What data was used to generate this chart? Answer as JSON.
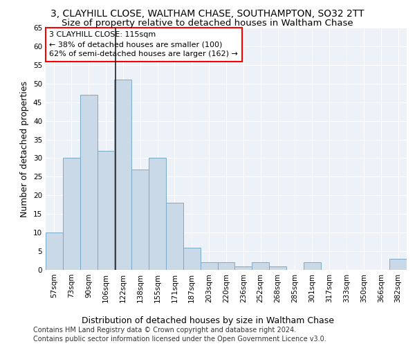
{
  "title_line1": "3, CLAYHILL CLOSE, WALTHAM CHASE, SOUTHAMPTON, SO32 2TT",
  "title_line2": "Size of property relative to detached houses in Waltham Chase",
  "xlabel": "Distribution of detached houses by size in Waltham Chase",
  "ylabel": "Number of detached properties",
  "footer_line1": "Contains HM Land Registry data © Crown copyright and database right 2024.",
  "footer_line2": "Contains public sector information licensed under the Open Government Licence v3.0.",
  "categories": [
    "57sqm",
    "73sqm",
    "90sqm",
    "106sqm",
    "122sqm",
    "138sqm",
    "155sqm",
    "171sqm",
    "187sqm",
    "203sqm",
    "220sqm",
    "236sqm",
    "252sqm",
    "268sqm",
    "285sqm",
    "301sqm",
    "317sqm",
    "333sqm",
    "350sqm",
    "366sqm",
    "382sqm"
  ],
  "values": [
    10,
    30,
    47,
    32,
    51,
    27,
    30,
    18,
    6,
    2,
    2,
    1,
    2,
    1,
    0,
    2,
    0,
    0,
    0,
    0,
    3
  ],
  "bar_color": "#c9d9e8",
  "bar_edge_color": "#7aaac8",
  "annotation_text": "3 CLAYHILL CLOSE: 115sqm\n← 38% of detached houses are smaller (100)\n62% of semi-detached houses are larger (162) →",
  "ylim": [
    0,
    65
  ],
  "yticks": [
    0,
    5,
    10,
    15,
    20,
    25,
    30,
    35,
    40,
    45,
    50,
    55,
    60,
    65
  ],
  "background_color": "#edf2f8",
  "grid_color": "#ffffff",
  "title1_fontsize": 10,
  "title2_fontsize": 9.5,
  "axis_label_fontsize": 9,
  "tick_fontsize": 7.5,
  "footer_fontsize": 7,
  "annot_fontsize": 8
}
